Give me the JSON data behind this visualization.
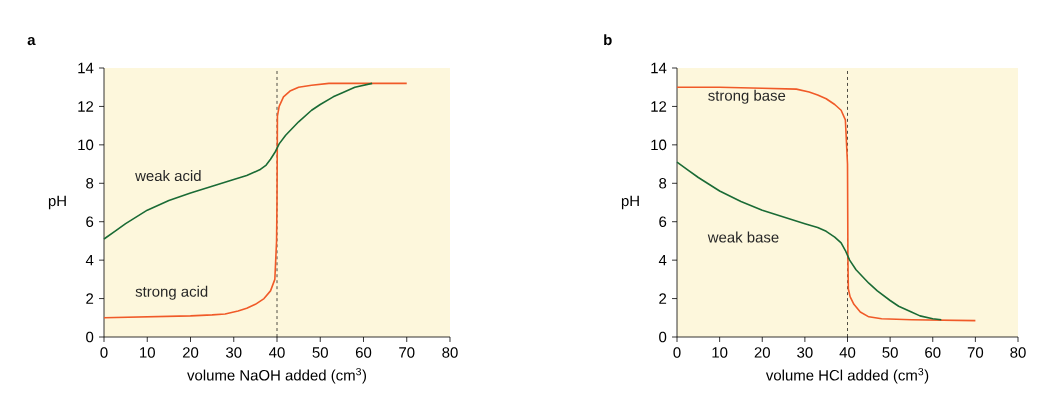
{
  "chart_data": [
    {
      "type": "line",
      "title": "a",
      "xlabel": "volume NaOH added (cm$^{3}$)",
      "ylabel": "pH",
      "xlim": [
        0,
        80
      ],
      "ylim": [
        0,
        14
      ],
      "xticks": [
        0,
        10,
        20,
        30,
        40,
        50,
        60,
        70,
        80
      ],
      "yticks": [
        0,
        2,
        4,
        6,
        8,
        10,
        12,
        14
      ],
      "ref_lines": [
        {
          "axis": "x",
          "value": 40,
          "line_style": "dashed"
        }
      ],
      "series": [
        {
          "name": "strong acid",
          "color": "#f05a28",
          "x": [
            0,
            10,
            20,
            25,
            28,
            31,
            33,
            35,
            37,
            38.5,
            39.5,
            39.9,
            40,
            40.1,
            40.5,
            41.5,
            43,
            45,
            48,
            52,
            55,
            70
          ],
          "values": [
            1,
            1.05,
            1.1,
            1.15,
            1.2,
            1.35,
            1.5,
            1.7,
            2.0,
            2.4,
            3.0,
            5,
            7,
            11.5,
            12.0,
            12.5,
            12.8,
            13.0,
            13.1,
            13.2,
            13.2,
            13.2
          ]
        },
        {
          "name": "weak acid",
          "color": "#1a6b35",
          "x": [
            0,
            2.5,
            5,
            7.5,
            10,
            15,
            20,
            25,
            30,
            33,
            36,
            37.5,
            38.5,
            39.5,
            40.5,
            42,
            45,
            48,
            50,
            53,
            55,
            58,
            62
          ],
          "values": [
            5.1,
            5.5,
            5.9,
            6.25,
            6.6,
            7.1,
            7.5,
            7.85,
            8.2,
            8.4,
            8.7,
            8.95,
            9.25,
            9.6,
            10.05,
            10.5,
            11.2,
            11.8,
            12.1,
            12.5,
            12.7,
            13.0,
            13.2
          ]
        }
      ]
    },
    {
      "type": "line",
      "title": "b",
      "xlabel": "volume HCl added (cm$^{3}$)",
      "ylabel": "pH",
      "xlim": [
        0,
        80
      ],
      "ylim": [
        0,
        14
      ],
      "xticks": [
        0,
        10,
        20,
        30,
        40,
        50,
        60,
        70,
        80
      ],
      "yticks": [
        0,
        2,
        4,
        6,
        8,
        10,
        12,
        14
      ],
      "ref_lines": [
        {
          "axis": "x",
          "value": 40,
          "line_style": "dashed"
        }
      ],
      "series": [
        {
          "name": "strong base",
          "color": "#f05a28",
          "x": [
            0,
            10,
            20,
            28,
            31,
            33,
            35,
            37,
            38.5,
            39.5,
            40,
            40.1,
            40.2,
            40.6,
            41.5,
            43,
            45,
            48,
            55,
            70
          ],
          "values": [
            13,
            13,
            12.95,
            12.9,
            12.75,
            12.6,
            12.4,
            12.1,
            11.8,
            11.3,
            9,
            4,
            2.5,
            2.1,
            1.7,
            1.3,
            1.05,
            0.95,
            0.9,
            0.85
          ]
        },
        {
          "name": "weak base",
          "color": "#1a6b35",
          "x": [
            0,
            2.5,
            5,
            7.5,
            10,
            15,
            20,
            25,
            30,
            33,
            35,
            37,
            38.5,
            39.5,
            40.5,
            42,
            45,
            47,
            50,
            52,
            55,
            57,
            60,
            62
          ],
          "values": [
            9.1,
            8.7,
            8.3,
            7.95,
            7.6,
            7.05,
            6.6,
            6.25,
            5.9,
            5.7,
            5.5,
            5.2,
            4.9,
            4.5,
            4.0,
            3.5,
            2.8,
            2.4,
            1.9,
            1.6,
            1.3,
            1.1,
            0.95,
            0.9
          ]
        }
      ]
    }
  ]
}
